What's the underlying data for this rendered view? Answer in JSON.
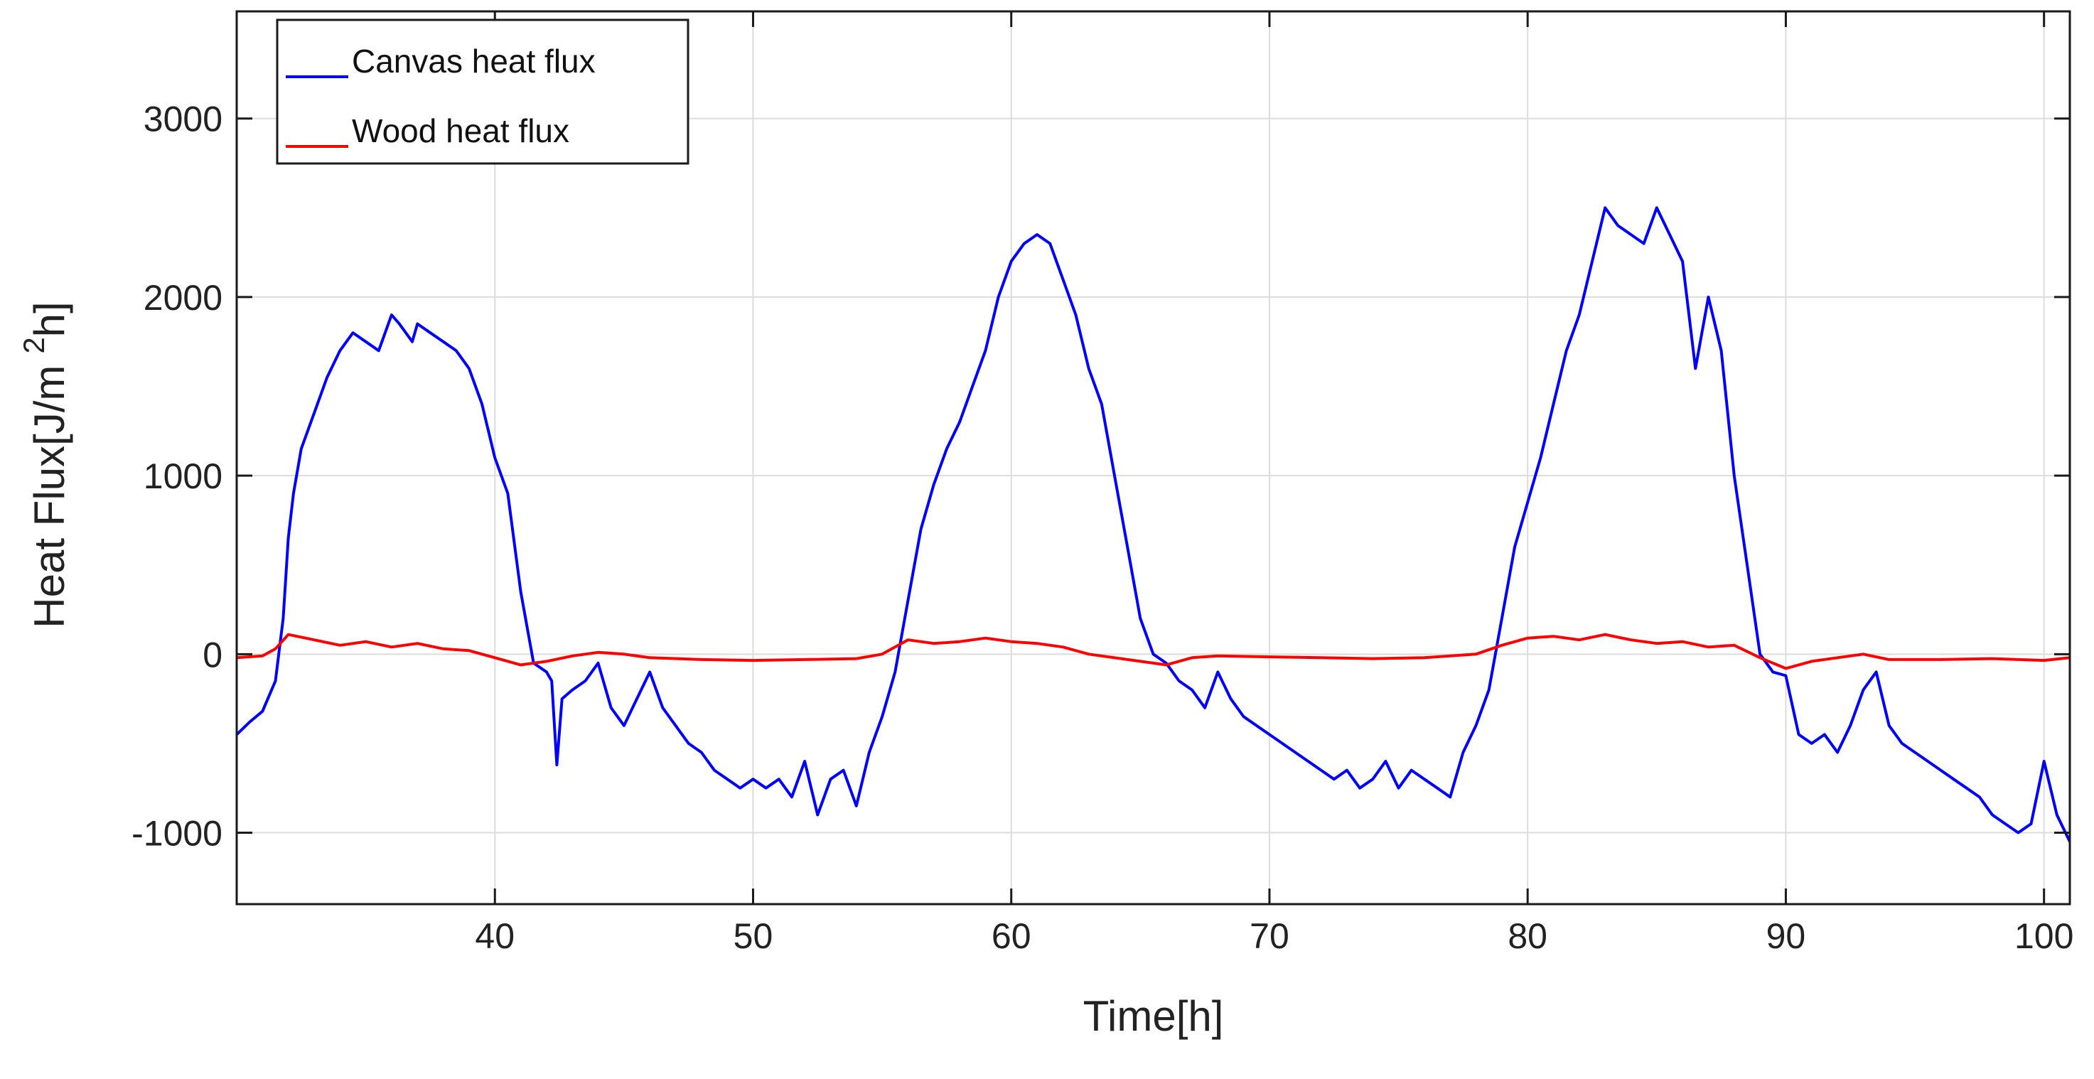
{
  "chart_data": {
    "type": "line",
    "title": "",
    "xlabel": "Time[h]",
    "ylabel_prefix": "Heat Flux[J/m",
    "ylabel_superscript": "2",
    "ylabel_suffix": "h]",
    "xlim": [
      30,
      101
    ],
    "ylim": [
      -1400,
      3600
    ],
    "xticks": [
      40,
      50,
      60,
      70,
      80,
      90,
      100
    ],
    "xtick_labels": [
      "40",
      "50",
      "60",
      "70",
      "80",
      "90",
      "100"
    ],
    "yticks": [
      -1000,
      0,
      1000,
      2000,
      3000
    ],
    "ytick_labels": [
      "-1000",
      "0",
      "1000",
      "2000",
      "3000"
    ],
    "grid": true,
    "legend_position": "top-left",
    "series": [
      {
        "name": "Canvas heat flux",
        "color": "#0000ff",
        "x": [
          30,
          30.5,
          31,
          31.5,
          31.8,
          32,
          32.2,
          32.5,
          33,
          33.5,
          34,
          34.5,
          35,
          35.5,
          36,
          36.3,
          36.8,
          37,
          37.5,
          38,
          38.5,
          39,
          39.5,
          40,
          40.5,
          41,
          41.5,
          42,
          42.2,
          42.4,
          42.6,
          43,
          43.5,
          44,
          44.5,
          45,
          45.5,
          46,
          46.5,
          47,
          47.5,
          48,
          48.5,
          49,
          49.5,
          50,
          50.5,
          51,
          51.5,
          52,
          52.5,
          53,
          53.5,
          54,
          54.5,
          55,
          55.5,
          56,
          56.5,
          57,
          57.5,
          58,
          58.5,
          59,
          59.5,
          60,
          60.5,
          61,
          61.5,
          62,
          62.5,
          63,
          63.5,
          64,
          64.5,
          65,
          65.5,
          66,
          66.5,
          67,
          67.5,
          68,
          68.5,
          69,
          69.5,
          70,
          70.5,
          71,
          71.5,
          72,
          72.5,
          73,
          73.5,
          74,
          74.5,
          75,
          75.5,
          76,
          76.5,
          77,
          77.5,
          78,
          78.5,
          79,
          79.5,
          80,
          80.5,
          81,
          81.5,
          82,
          82.5,
          83,
          83.5,
          84,
          84.5,
          85,
          85.5,
          86,
          86.5,
          87,
          87.5,
          88,
          88.5,
          89,
          89.5,
          90,
          90.5,
          91,
          91.5,
          92,
          92.5,
          93,
          93.5,
          94,
          94.5,
          95,
          95.5,
          96,
          96.5,
          97,
          97.5,
          98,
          98.5,
          99,
          99.5,
          100,
          100.5,
          101
        ],
        "y": [
          -450,
          -380,
          -320,
          -150,
          200,
          650,
          900,
          1150,
          1350,
          1550,
          1700,
          1800,
          1750,
          1700,
          1900,
          1850,
          1750,
          1850,
          1800,
          1750,
          1700,
          1600,
          1400,
          1100,
          900,
          350,
          -50,
          -100,
          -150,
          -620,
          -250,
          -200,
          -150,
          -50,
          -300,
          -400,
          -250,
          -100,
          -300,
          -400,
          -500,
          -550,
          -650,
          -700,
          -750,
          -700,
          -750,
          -700,
          -800,
          -600,
          -900,
          -700,
          -650,
          -850,
          -550,
          -350,
          -100,
          300,
          700,
          950,
          1150,
          1300,
          1500,
          1700,
          2000,
          2200,
          2300,
          2350,
          2300,
          2100,
          1900,
          1600,
          1400,
          1000,
          600,
          200,
          0,
          -50,
          -150,
          -200,
          -300,
          -100,
          -250,
          -350,
          -400,
          -450,
          -500,
          -550,
          -600,
          -650,
          -700,
          -650,
          -750,
          -700,
          -600,
          -750,
          -650,
          -700,
          -750,
          -800,
          -550,
          -400,
          -200,
          200,
          600,
          850,
          1100,
          1400,
          1700,
          1900,
          2200,
          2500,
          2400,
          2350,
          2300,
          2500,
          2350,
          2200,
          1600,
          2000,
          1700,
          1000,
          500,
          0,
          -100,
          -120,
          -450,
          -500,
          -450,
          -550,
          -400,
          -200,
          -100,
          -400,
          -500,
          -550,
          -600,
          -650,
          -700,
          -750,
          -800,
          -900,
          -950,
          -1000,
          -950,
          -600,
          -900,
          -1050
        ]
      },
      {
        "name": "Wood heat flux",
        "color": "#ff0000",
        "x": [
          30,
          31,
          31.5,
          32,
          33,
          34,
          35,
          36,
          37,
          38,
          39,
          40,
          41,
          42,
          43,
          44,
          45,
          46,
          48,
          50,
          52,
          54,
          55,
          56,
          57,
          58,
          59,
          60,
          61,
          62,
          63,
          64,
          65,
          66,
          67,
          68,
          70,
          72,
          74,
          76,
          78,
          79,
          80,
          81,
          82,
          83,
          84,
          85,
          86,
          87,
          88,
          89,
          90,
          91,
          92,
          93,
          94,
          96,
          98,
          100,
          101
        ],
        "y": [
          -20,
          -10,
          30,
          110,
          80,
          50,
          70,
          40,
          60,
          30,
          20,
          -20,
          -60,
          -40,
          -10,
          10,
          0,
          -20,
          -30,
          -35,
          -30,
          -25,
          0,
          80,
          60,
          70,
          90,
          70,
          60,
          40,
          0,
          -20,
          -40,
          -60,
          -20,
          -10,
          -15,
          -20,
          -25,
          -20,
          0,
          50,
          90,
          100,
          80,
          110,
          80,
          60,
          70,
          40,
          50,
          -20,
          -80,
          -40,
          -20,
          0,
          -30,
          -30,
          -25,
          -35,
          -20
        ]
      }
    ]
  }
}
